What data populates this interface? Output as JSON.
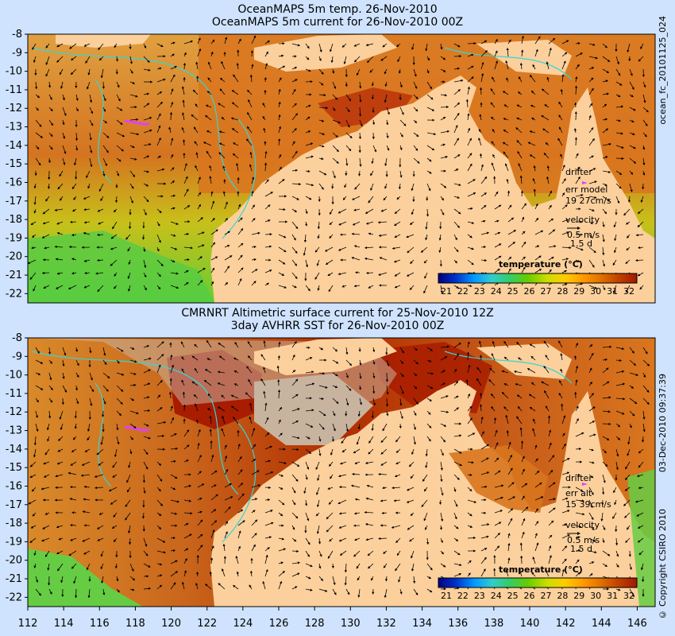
{
  "panels": [
    {
      "title_line1": "OceanMAPS 5m temp. 26-Nov-2010",
      "title_line2": "OceanMAPS 5m current for 26-Nov-2010 00Z",
      "drifter_label": "drifter",
      "err_label": "err model",
      "err_value": "19 27cm/s",
      "velocity_label": "velocity",
      "velocity_scale": "0.5 m/s",
      "velocity_days": "1.5 d",
      "colorbar_title": "temperature (°C)"
    },
    {
      "title_line1": "CMRNRT Altimetric surface current for 25-Nov-2010 12Z",
      "title_line2": "3day AVHRR SST for 26-Nov-2010 00Z",
      "drifter_label": "drifter",
      "err_label": "err alt",
      "err_value": "15 39cm/s",
      "velocity_label": "velocity",
      "velocity_scale": "0.5 m/s",
      "velocity_days": "1.5 d",
      "colorbar_title": "temperature (°C)"
    }
  ],
  "side_labels": {
    "top_right": "ocean_fc_20101125_024",
    "bottom_right": "03-Dec-2010 09:37:39",
    "copyright": "© Copyright CSIRO 2010"
  },
  "axes": {
    "lat_ticks": [
      "-8",
      "-9",
      "-10",
      "-11",
      "-12",
      "-13",
      "-14",
      "-15",
      "-16",
      "-17",
      "-18",
      "-19",
      "-20",
      "-21",
      "-22"
    ],
    "lon_ticks": [
      "112",
      "114",
      "116",
      "118",
      "120",
      "122",
      "124",
      "126",
      "128",
      "130",
      "132",
      "134",
      "136",
      "138",
      "140",
      "142",
      "144",
      "146"
    ],
    "lat_range": [
      -22.5,
      -8
    ],
    "lon_range": [
      112,
      147
    ]
  },
  "colorbar": {
    "ticks": [
      "21",
      "22",
      "23",
      "24",
      "25",
      "26",
      "27",
      "28",
      "29",
      "30",
      "31",
      "32"
    ],
    "colors": [
      "#00007f",
      "#0033cc",
      "#0099ff",
      "#33cccc",
      "#33cc66",
      "#66cc00",
      "#ccdd00",
      "#ffcc00",
      "#ff9900",
      "#e07000",
      "#c04000",
      "#a01800"
    ]
  },
  "colors": {
    "land": "#fcd09c",
    "ocean_warm": "#d9761e",
    "ocean_hot": "#a81c00",
    "ocean_cool": "#9ccf1a",
    "ocean_cold": "#33cc55",
    "no_data": "#c8b39f",
    "bathymetry": "#33d6d6",
    "drifter": "#e040ff",
    "background": "#cfe3ff"
  }
}
